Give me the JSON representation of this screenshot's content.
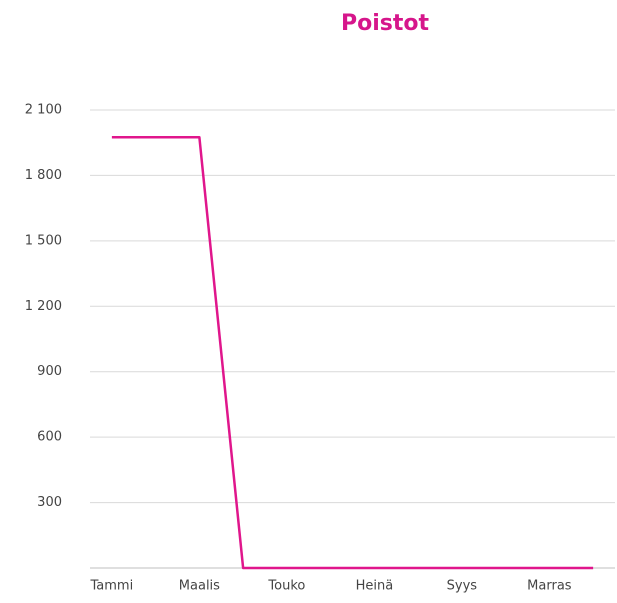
{
  "chart_data": {
    "type": "line",
    "title": "Poistot",
    "categories": [
      "Tammi",
      null,
      "Maalis",
      null,
      "Touko",
      null,
      "Heinä",
      null,
      "Syys",
      null,
      "Marras",
      null
    ],
    "series": [
      {
        "name": "Poistot",
        "color": "#e0168c",
        "values": [
          1975,
          1975,
          1975,
          0,
          0,
          0,
          0,
          0,
          0,
          0,
          0,
          0
        ]
      }
    ],
    "ylim": [
      0,
      2100
    ],
    "yticks": [
      300,
      600,
      900,
      {
        "value": 1200,
        "label": "1 200"
      },
      {
        "value": 1500,
        "label": "1 500"
      },
      {
        "value": 1800,
        "label": "1 800"
      },
      {
        "value": 2100,
        "label": "2 100"
      }
    ],
    "grid": true
  }
}
